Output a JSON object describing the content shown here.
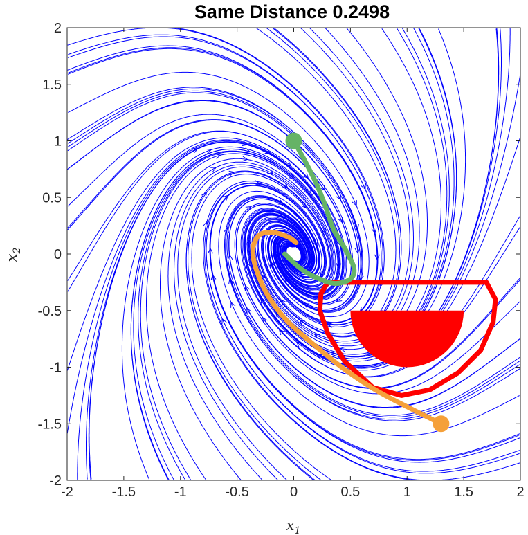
{
  "chart_data": {
    "type": "streamline",
    "title": "Same Distance 0.2498",
    "xlabel": "x",
    "xlabel_sub": "1",
    "ylabel": "x",
    "ylabel_sub": "2",
    "xlim": [
      -2,
      2
    ],
    "ylim": [
      -2,
      2
    ],
    "xticks": [
      -2,
      -1.5,
      -1,
      -0.5,
      0,
      0.5,
      1,
      1.5,
      2
    ],
    "xtick_labels": [
      "-2",
      "-1.5",
      "-1",
      "-0.5",
      "0",
      "0.5",
      "1",
      "1.5",
      "2"
    ],
    "yticks": [
      -2,
      -1.5,
      -1,
      -0.5,
      0,
      0.5,
      1,
      1.5,
      2
    ],
    "ytick_labels": [
      "-2",
      "-1.5",
      "-1",
      "-0.5",
      "0",
      "0.5",
      "1",
      "1.5",
      "2"
    ],
    "streamline_color": "#0000ff",
    "trajectories": [
      {
        "color": "#66b366",
        "start": [
          0,
          1
        ],
        "points": [
          [
            0,
            1
          ],
          [
            0.1,
            0.82
          ],
          [
            0.2,
            0.62
          ],
          [
            0.28,
            0.42
          ],
          [
            0.35,
            0.22
          ],
          [
            0.45,
            0.05
          ],
          [
            0.53,
            -0.12
          ],
          [
            0.5,
            -0.22
          ],
          [
            0.36,
            -0.26
          ],
          [
            0.18,
            -0.2
          ],
          [
            0.05,
            -0.12
          ],
          [
            -0.08,
            0
          ]
        ]
      },
      {
        "color": "#f5a03a",
        "start": [
          1.3,
          -1.5
        ],
        "points": [
          [
            1.3,
            -1.5
          ],
          [
            1.0,
            -1.35
          ],
          [
            0.72,
            -1.2
          ],
          [
            0.45,
            -1.02
          ],
          [
            0.2,
            -0.82
          ],
          [
            -0.05,
            -0.6
          ],
          [
            -0.22,
            -0.38
          ],
          [
            -0.33,
            -0.14
          ],
          [
            -0.36,
            0.05
          ],
          [
            -0.3,
            0.17
          ],
          [
            -0.18,
            0.19
          ],
          [
            -0.05,
            0.15
          ],
          [
            0.02,
            0.1
          ]
        ]
      }
    ],
    "unsafe_set": {
      "color": "#ff0000",
      "filled_half_disk": {
        "center": [
          1,
          -0.5
        ],
        "radius": 0.5
      },
      "boundary": [
        [
          0.3,
          -0.25
        ],
        [
          1.7,
          -0.25
        ],
        [
          1.78,
          -0.4
        ],
        [
          1.76,
          -0.6
        ],
        [
          1.65,
          -0.85
        ],
        [
          1.45,
          -1.05
        ],
        [
          1.2,
          -1.2
        ],
        [
          0.95,
          -1.25
        ],
        [
          0.7,
          -1.18
        ],
        [
          0.45,
          -0.95
        ],
        [
          0.3,
          -0.7
        ],
        [
          0.23,
          -0.5
        ],
        [
          0.24,
          -0.35
        ]
      ]
    }
  }
}
